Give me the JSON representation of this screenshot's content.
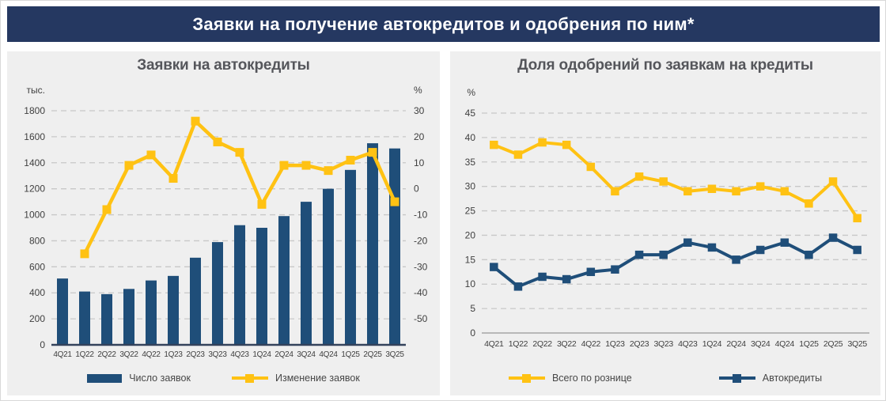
{
  "page_title": "Заявки на получение автокредитов и одобрения по ним*",
  "colors": {
    "banner_bg": "#253861",
    "panel_bg": "#efefef",
    "navy_series": "#1F4E79",
    "yellow_series": "#FFC213",
    "grid": "#c8c8c8",
    "axis_text": "#3f3f3f"
  },
  "chart_data": [
    {
      "type": "bar",
      "title": "Заявки на автокредиты",
      "categories": [
        "4Q21",
        "1Q22",
        "2Q22",
        "3Q22",
        "4Q22",
        "1Q23",
        "2Q23",
        "3Q23",
        "4Q23",
        "1Q24",
        "2Q24",
        "3Q24",
        "4Q24",
        "1Q25",
        "2Q25",
        "3Q25"
      ],
      "series": [
        {
          "name": "Число заявок",
          "type": "bar",
          "axis": "left",
          "color": "#1F4E79",
          "values": [
            510,
            410,
            390,
            430,
            495,
            530,
            670,
            790,
            920,
            900,
            990,
            1100,
            1200,
            1345,
            1550,
            1510
          ]
        },
        {
          "name": "Изменение заявок",
          "type": "line",
          "axis": "right",
          "color": "#FFC213",
          "values": [
            null,
            -25,
            -8,
            9,
            13,
            4,
            26,
            18,
            14,
            -6,
            9,
            9,
            7,
            11,
            14,
            -5
          ]
        }
      ],
      "left_axis": {
        "label": "тыс.",
        "min": 0,
        "max": 1800,
        "step": 200
      },
      "right_axis": {
        "label": "%",
        "min": -60,
        "max": 30,
        "tick_top": 30,
        "tick_bottom": -50,
        "step": 10
      },
      "grid": true,
      "legend_position": "bottom"
    },
    {
      "type": "line",
      "title": "Доля одобрений по заявкам на кредиты",
      "categories": [
        "4Q21",
        "1Q22",
        "2Q22",
        "3Q22",
        "4Q22",
        "1Q23",
        "2Q23",
        "3Q23",
        "4Q23",
        "1Q24",
        "2Q24",
        "3Q24",
        "4Q24",
        "1Q25",
        "2Q25",
        "3Q25"
      ],
      "series": [
        {
          "name": "Всего по рознице",
          "type": "line",
          "axis": "left",
          "color": "#FFC213",
          "values": [
            38.5,
            36.5,
            39,
            38.5,
            34,
            29,
            32,
            31,
            29,
            29.5,
            29,
            30,
            29,
            26.5,
            31,
            23.5
          ]
        },
        {
          "name": "Автокредиты",
          "type": "line",
          "axis": "left",
          "color": "#1F4E79",
          "values": [
            13.5,
            9.5,
            11.5,
            11,
            12.5,
            13,
            16,
            16,
            18.5,
            17.5,
            15,
            17,
            18.5,
            16,
            19.5,
            17
          ]
        }
      ],
      "left_axis": {
        "label": "%",
        "min": 0,
        "max": 45,
        "step": 5
      },
      "grid": true,
      "legend_position": "bottom"
    }
  ]
}
